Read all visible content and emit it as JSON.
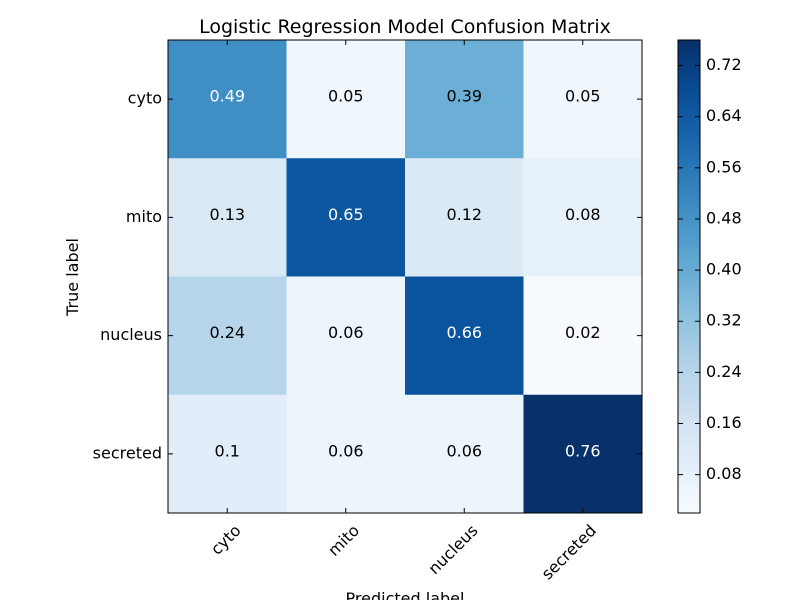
{
  "chart_data": {
    "type": "heatmap",
    "title": "Logistic Regression Model Confusion Matrix",
    "xlabel": "Predicted label",
    "ylabel": "True label",
    "x_categories": [
      "cyto",
      "mito",
      "nucleus",
      "secreted"
    ],
    "y_categories": [
      "cyto",
      "mito",
      "nucleus",
      "secreted"
    ],
    "values": [
      [
        0.49,
        0.05,
        0.39,
        0.05
      ],
      [
        0.13,
        0.65,
        0.12,
        0.08
      ],
      [
        0.24,
        0.06,
        0.66,
        0.02
      ],
      [
        0.1,
        0.06,
        0.06,
        0.76
      ]
    ],
    "value_labels": [
      [
        "0.49",
        "0.05",
        "0.39",
        "0.05"
      ],
      [
        "0.13",
        "0.65",
        "0.12",
        "0.08"
      ],
      [
        "0.24",
        "0.06",
        "0.66",
        "0.02"
      ],
      [
        "0.1",
        "0.06",
        "0.06",
        "0.76"
      ]
    ],
    "colormap": "Blues",
    "color_range": [
      0.02,
      0.76
    ],
    "colorbar_ticks": [
      0.08,
      0.16,
      0.24,
      0.32,
      0.4,
      0.48,
      0.56,
      0.64,
      0.72
    ],
    "colorbar_tick_labels": [
      "0.08",
      "0.16",
      "0.24",
      "0.32",
      "0.40",
      "0.48",
      "0.56",
      "0.64",
      "0.72"
    ],
    "colors": {
      "text_dark": "#000000",
      "text_light": "#ffffff"
    }
  }
}
